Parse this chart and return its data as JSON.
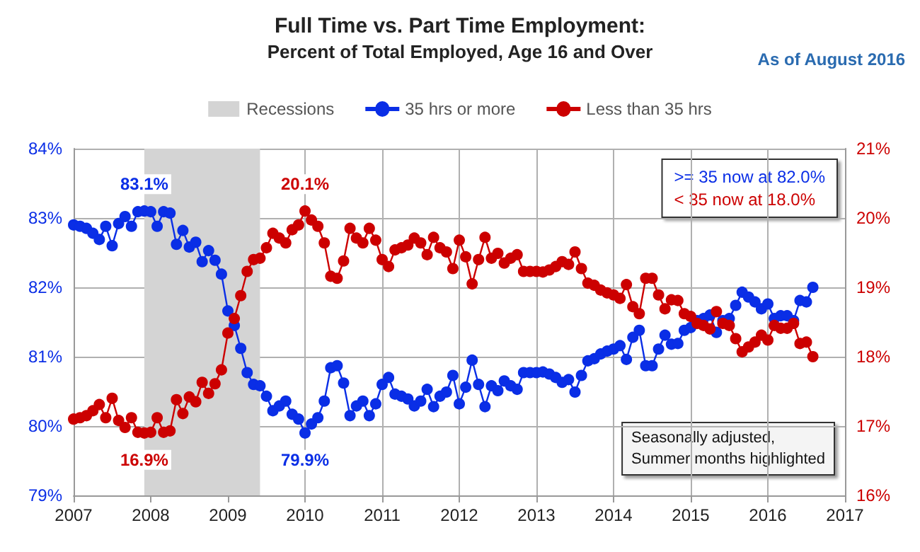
{
  "chart_data": {
    "type": "line",
    "title": "Full Time vs. Part Time Employment:",
    "subtitle": "Percent of Total Employed, Age 16 and Over",
    "annotations": [
      "As of August 2016",
      ">= 35 now at 82.0%",
      "< 35 now at 18.0%",
      "Seasonally adjusted,\nSummer months highlighted"
    ],
    "x": [
      "2007-01",
      "2007-02",
      "2007-03",
      "2007-04",
      "2007-05",
      "2007-06",
      "2007-07",
      "2007-08",
      "2007-09",
      "2007-10",
      "2007-11",
      "2007-12",
      "2008-01",
      "2008-02",
      "2008-03",
      "2008-04",
      "2008-05",
      "2008-06",
      "2008-07",
      "2008-08",
      "2008-09",
      "2008-10",
      "2008-11",
      "2008-12",
      "2009-01",
      "2009-02",
      "2009-03",
      "2009-04",
      "2009-05",
      "2009-06",
      "2009-07",
      "2009-08",
      "2009-09",
      "2009-10",
      "2009-11",
      "2009-12",
      "2010-01",
      "2010-02",
      "2010-03",
      "2010-04",
      "2010-05",
      "2010-06",
      "2010-07",
      "2010-08",
      "2010-09",
      "2010-10",
      "2010-11",
      "2010-12",
      "2011-01",
      "2011-02",
      "2011-03",
      "2011-04",
      "2011-05",
      "2011-06",
      "2011-07",
      "2011-08",
      "2011-09",
      "2011-10",
      "2011-11",
      "2011-12",
      "2012-01",
      "2012-02",
      "2012-03",
      "2012-04",
      "2012-05",
      "2012-06",
      "2012-07",
      "2012-08",
      "2012-09",
      "2012-10",
      "2012-11",
      "2012-12",
      "2013-01",
      "2013-02",
      "2013-03",
      "2013-04",
      "2013-05",
      "2013-06",
      "2013-07",
      "2013-08",
      "2013-09",
      "2013-10",
      "2013-11",
      "2013-12",
      "2014-01",
      "2014-02",
      "2014-03",
      "2014-04",
      "2014-05",
      "2014-06",
      "2014-07",
      "2014-08",
      "2014-09",
      "2014-10",
      "2014-11",
      "2014-12",
      "2015-01",
      "2015-02",
      "2015-03",
      "2015-04",
      "2015-05",
      "2015-06",
      "2015-07",
      "2015-08",
      "2015-09",
      "2015-10",
      "2015-11",
      "2015-12",
      "2016-01",
      "2016-02",
      "2016-03",
      "2016-04",
      "2016-05",
      "2016-06",
      "2016-07",
      "2016-08"
    ],
    "series": [
      {
        "name": "35 hrs or more",
        "color": "#0a2ee6",
        "values": [
          82.9,
          82.88,
          82.85,
          82.78,
          82.69,
          82.88,
          82.6,
          82.92,
          83.02,
          82.88,
          83.09,
          83.1,
          83.09,
          82.88,
          83.09,
          83.07,
          82.62,
          82.82,
          82.58,
          82.65,
          82.37,
          82.53,
          82.39,
          82.19,
          81.66,
          81.45,
          81.12,
          80.77,
          80.6,
          80.58,
          80.43,
          80.22,
          80.29,
          80.36,
          80.17,
          80.1,
          79.9,
          80.03,
          80.12,
          80.36,
          80.84,
          80.87,
          80.62,
          80.15,
          80.29,
          80.36,
          80.15,
          80.32,
          80.6,
          80.7,
          80.46,
          80.43,
          80.39,
          80.29,
          80.36,
          80.53,
          80.28,
          80.43,
          80.49,
          80.73,
          80.32,
          80.56,
          80.95,
          80.6,
          80.28,
          80.58,
          80.51,
          80.65,
          80.58,
          80.53,
          80.77,
          80.77,
          80.77,
          80.78,
          80.75,
          80.7,
          80.63,
          80.67,
          80.49,
          80.73,
          80.94,
          80.97,
          81.04,
          81.08,
          81.11,
          81.16,
          80.96,
          81.28,
          81.38,
          80.87,
          80.87,
          81.11,
          81.31,
          81.18,
          81.19,
          81.38,
          81.42,
          81.52,
          81.55,
          81.6,
          81.35,
          81.52,
          81.55,
          81.74,
          81.93,
          81.86,
          81.79,
          81.69,
          81.76,
          81.55,
          81.59,
          81.59,
          81.52,
          81.81,
          81.79,
          82.0
        ],
        "value_labels": [
          null,
          null,
          null,
          null,
          null,
          null,
          null,
          null,
          null,
          null,
          null,
          "83.1%",
          null,
          null,
          null,
          null,
          null,
          null,
          null,
          null,
          null,
          null,
          null,
          null,
          null,
          null,
          null,
          null,
          null,
          null,
          null,
          null,
          null,
          null,
          null,
          null,
          "79.9%",
          null,
          null,
          null,
          null,
          null,
          null,
          null,
          null,
          null,
          null,
          null,
          null,
          null,
          null,
          null,
          null,
          null,
          null,
          null,
          null,
          null,
          null,
          null,
          null,
          null,
          null,
          null,
          null,
          null,
          null,
          null,
          null,
          null,
          null,
          null,
          null,
          null,
          null,
          null,
          null,
          null,
          null,
          null,
          null,
          null,
          null,
          null,
          null,
          null,
          null,
          null,
          null,
          null,
          null,
          null,
          null,
          null,
          null,
          null,
          null,
          null,
          null,
          null,
          null,
          null,
          null,
          null,
          null,
          null,
          null,
          null,
          null,
          null,
          null,
          null,
          null,
          null,
          null,
          null
        ]
      },
      {
        "name": "Less than 35 hrs",
        "color": "#cc0000",
        "axis": "y2",
        "values": [
          17.1,
          17.12,
          17.15,
          17.22,
          17.31,
          17.12,
          17.4,
          17.08,
          16.98,
          17.12,
          16.91,
          16.9,
          16.91,
          17.12,
          16.91,
          16.93,
          17.38,
          17.18,
          17.42,
          17.35,
          17.63,
          17.47,
          17.61,
          17.81,
          18.34,
          18.55,
          18.88,
          19.23,
          19.4,
          19.42,
          19.57,
          19.78,
          19.71,
          19.64,
          19.83,
          19.9,
          20.1,
          19.97,
          19.88,
          19.64,
          19.16,
          19.13,
          19.38,
          19.85,
          19.71,
          19.64,
          19.85,
          19.68,
          19.4,
          19.3,
          19.54,
          19.57,
          19.61,
          19.71,
          19.64,
          19.47,
          19.72,
          19.57,
          19.51,
          19.27,
          19.68,
          19.44,
          19.05,
          19.4,
          19.72,
          19.42,
          19.49,
          19.35,
          19.42,
          19.47,
          19.23,
          19.23,
          19.23,
          19.22,
          19.25,
          19.3,
          19.37,
          19.33,
          19.51,
          19.27,
          19.06,
          19.03,
          18.96,
          18.92,
          18.89,
          18.84,
          19.04,
          18.72,
          18.62,
          19.13,
          19.13,
          18.89,
          18.69,
          18.82,
          18.81,
          18.62,
          18.58,
          18.48,
          18.45,
          18.4,
          18.65,
          18.48,
          18.45,
          18.26,
          18.07,
          18.14,
          18.21,
          18.31,
          18.24,
          18.45,
          18.41,
          18.41,
          18.48,
          18.19,
          18.21,
          18.0
        ],
        "value_labels": [
          null,
          null,
          null,
          null,
          null,
          null,
          null,
          null,
          null,
          null,
          null,
          "16.9%",
          null,
          null,
          null,
          null,
          null,
          null,
          null,
          null,
          null,
          null,
          null,
          null,
          null,
          null,
          null,
          null,
          null,
          null,
          null,
          null,
          null,
          null,
          null,
          null,
          "20.1%",
          null,
          null,
          null,
          null,
          null,
          null,
          null,
          null,
          null,
          null,
          null,
          null,
          null,
          null,
          null,
          null,
          null,
          null,
          null,
          null,
          null,
          null,
          null,
          null,
          null,
          null,
          null,
          null,
          null,
          null,
          null,
          null,
          null,
          null,
          null,
          null,
          null,
          null,
          null,
          null,
          null,
          null,
          null,
          null,
          null,
          null,
          null,
          null,
          null,
          null,
          null,
          null,
          null,
          null,
          null,
          null,
          null,
          null,
          null,
          null,
          null,
          null,
          null,
          null,
          null,
          null,
          null,
          null,
          null,
          null,
          null,
          null,
          null,
          null,
          null,
          null,
          null,
          null,
          null
        ]
      }
    ],
    "bands": [
      {
        "axis": "x",
        "from": "2007-12",
        "to": "2009-06",
        "label": "Recessions",
        "color": "#d4d4d4"
      }
    ],
    "xlim": [
      "2007",
      "2017"
    ],
    "xticks": [
      "2007",
      "2008",
      "2009",
      "2010",
      "2011",
      "2012",
      "2013",
      "2014",
      "2015",
      "2016",
      "2017"
    ],
    "ylim": [
      79,
      84
    ],
    "yticks": [
      {
        "value": 79,
        "label": "79%"
      },
      {
        "value": 80,
        "label": "80%"
      },
      {
        "value": 81,
        "label": "81%"
      },
      {
        "value": 82,
        "label": "82%"
      },
      {
        "value": 83,
        "label": "83%"
      },
      {
        "value": 84,
        "label": "84%"
      }
    ],
    "y2lim": [
      16,
      21
    ],
    "y2ticks": [
      {
        "value": 16,
        "label": "16%"
      },
      {
        "value": 17,
        "label": "17%"
      },
      {
        "value": 18,
        "label": "18%"
      },
      {
        "value": 19,
        "label": "19%"
      },
      {
        "value": 20,
        "label": "20%"
      },
      {
        "value": 21,
        "label": "21%"
      }
    ],
    "grid": true,
    "legend": "top",
    "marker": "circle",
    "line_style": "solid"
  }
}
